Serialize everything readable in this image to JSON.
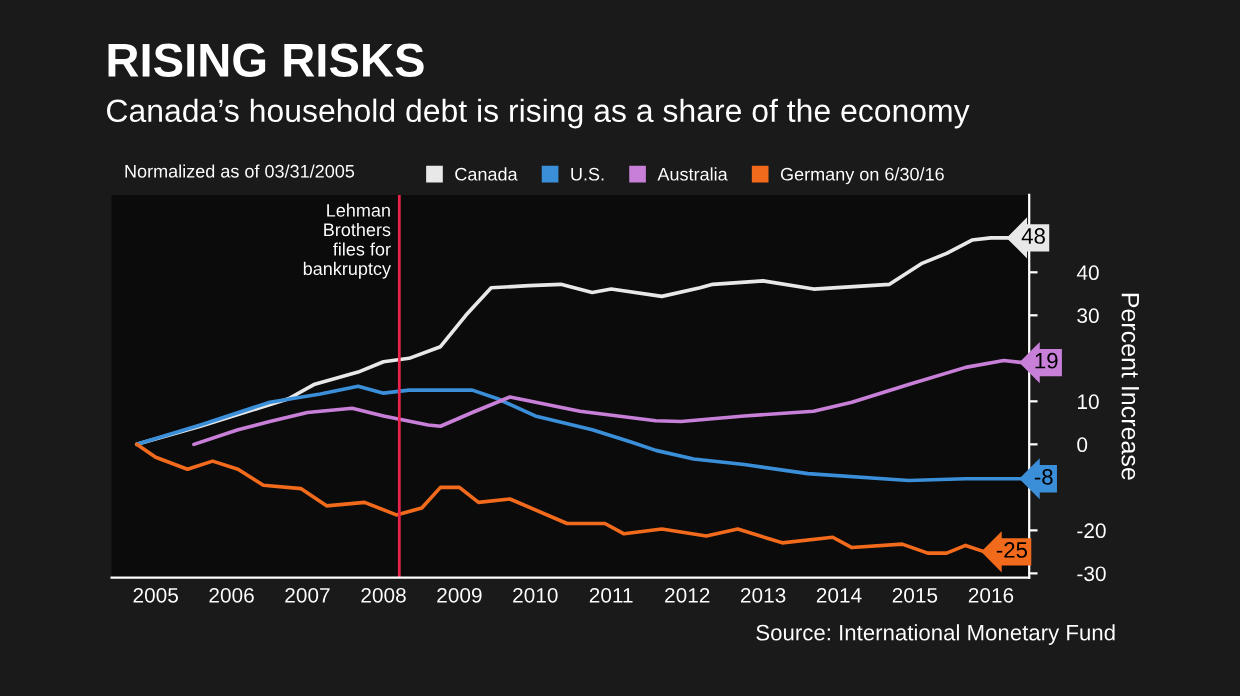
{
  "chart_data": {
    "type": "line",
    "title": "RISING RISKS",
    "subtitle": "Canada’s household debt is rising as a share of the economy",
    "ylabel": "Percent Increase",
    "annotations": [
      "Normalized as of 03/31/2005",
      "Source: International Monetary Fund"
    ],
    "legend": "top",
    "grid": false,
    "xlim": [
      "2004-12-01",
      "2017-01-01"
    ],
    "xticks": [
      {
        "value": "2005-07-01",
        "label": "2005"
      },
      {
        "value": "2006-07-01",
        "label": "2006"
      },
      {
        "value": "2007-07-01",
        "label": "2007"
      },
      {
        "value": "2008-07-01",
        "label": "2008"
      },
      {
        "value": "2009-07-01",
        "label": "2009"
      },
      {
        "value": "2010-07-01",
        "label": "2010"
      },
      {
        "value": "2011-07-01",
        "label": "2011"
      },
      {
        "value": "2012-07-01",
        "label": "2012"
      },
      {
        "value": "2013-07-01",
        "label": "2013"
      },
      {
        "value": "2014-07-01",
        "label": "2014"
      },
      {
        "value": "2015-07-01",
        "label": "2015"
      },
      {
        "value": "2016-07-01",
        "label": "2016"
      }
    ],
    "ylim": [
      -31,
      58
    ],
    "yticks": [
      -30,
      -20,
      0,
      10,
      30,
      40
    ],
    "ref_lines": [
      {
        "axis": "x",
        "value": "2008-09-15",
        "label": "Lehman\nBrothers\nfiles for\nbankruptcy",
        "color": "#e8234a"
      }
    ],
    "series": [
      {
        "name": "Canada",
        "color": "#e8e8e8",
        "x": [
          "2005-04",
          "2006-02",
          "2007-04",
          "2007-08",
          "2008-03",
          "2008-07",
          "2008-11",
          "2009-04",
          "2009-08",
          "2009-12",
          "2010-06",
          "2010-11",
          "2011-04",
          "2011-07",
          "2012-03",
          "2012-09",
          "2012-11",
          "2013-07",
          "2014-03",
          "2015-03",
          "2015-08",
          "2015-12",
          "2016-04",
          "2016-07",
          "2016-10"
        ],
        "values": [
          0,
          4.2,
          10.6,
          13.9,
          16.8,
          19.2,
          20,
          22.7,
          30,
          36.4,
          36.9,
          37.2,
          35.3,
          36.1,
          34.4,
          36.4,
          37.2,
          38,
          36.1,
          37.2,
          42,
          44.4,
          47.5,
          48,
          48
        ],
        "value_labels": [
          null,
          null,
          null,
          null,
          null,
          null,
          null,
          null,
          null,
          null,
          null,
          null,
          null,
          null,
          null,
          null,
          null,
          null,
          null,
          null,
          null,
          null,
          null,
          null,
          "48"
        ]
      },
      {
        "name": "U.S.",
        "color": "#3a8fd8",
        "x": [
          "2005-04",
          "2006-02",
          "2007-01",
          "2007-09",
          "2008-03",
          "2008-07",
          "2008-11",
          "2009-09",
          "2010-01",
          "2010-07",
          "2011-04",
          "2011-10",
          "2012-02",
          "2012-08",
          "2013-04",
          "2014-02",
          "2015-06",
          "2016-03",
          "2016-12"
        ],
        "values": [
          0,
          4.5,
          9.8,
          11.7,
          13.5,
          11.9,
          12.6,
          12.6,
          10.6,
          6.6,
          3.4,
          0.6,
          -1.4,
          -3.4,
          -4.7,
          -6.8,
          -8.4,
          -8,
          -8
        ],
        "value_labels": [
          null,
          null,
          null,
          null,
          null,
          null,
          null,
          null,
          null,
          null,
          null,
          null,
          null,
          null,
          null,
          null,
          null,
          null,
          "-8"
        ]
      },
      {
        "name": "Australia",
        "color": "#c77fd8",
        "x": [
          "2006-01",
          "2006-08",
          "2007-01",
          "2007-07",
          "2008-02",
          "2008-07",
          "2009-02",
          "2009-04",
          "2009-09",
          "2010-03",
          "2011-02",
          "2012-02",
          "2012-06",
          "2013-04",
          "2014-03",
          "2014-09",
          "2015-06",
          "2016-03",
          "2016-09",
          "2016-12"
        ],
        "values": [
          0,
          3.4,
          5.3,
          7.4,
          8.4,
          6.6,
          4.5,
          4.2,
          7.4,
          11,
          7.7,
          5.5,
          5.3,
          6.6,
          7.7,
          9.8,
          13.9,
          17.9,
          19.5,
          19
        ],
        "value_labels": [
          null,
          null,
          null,
          null,
          null,
          null,
          null,
          null,
          null,
          null,
          null,
          null,
          null,
          null,
          null,
          null,
          null,
          null,
          null,
          "19"
        ]
      },
      {
        "name": "Germany on 6/30/16",
        "color": "#f26a1b",
        "x": [
          "2005-04",
          "2005-07",
          "2005-12",
          "2006-04",
          "2006-08",
          "2006-12",
          "2007-06",
          "2007-10",
          "2008-04",
          "2008-09",
          "2009-01",
          "2009-04",
          "2009-07",
          "2009-10",
          "2010-03",
          "2010-12",
          "2011-06",
          "2011-09",
          "2012-03",
          "2012-10",
          "2013-03",
          "2013-10",
          "2014-06",
          "2014-09",
          "2015-05",
          "2015-09",
          "2015-12",
          "2016-03",
          "2016-06"
        ],
        "values": [
          0,
          -3,
          -5.8,
          -3.9,
          -5.8,
          -9.5,
          -10.3,
          -14.3,
          -13.5,
          -16.4,
          -14.8,
          -10,
          -10,
          -13.5,
          -12.7,
          -18.4,
          -18.4,
          -20.8,
          -19.7,
          -21.3,
          -19.7,
          -22.9,
          -21.6,
          -24,
          -23.2,
          -25.3,
          -25.3,
          -23.5,
          -25
        ],
        "value_labels": [
          null,
          null,
          null,
          null,
          null,
          null,
          null,
          null,
          null,
          null,
          null,
          null,
          null,
          null,
          null,
          null,
          null,
          null,
          null,
          null,
          null,
          null,
          null,
          null,
          null,
          null,
          null,
          null,
          "-25"
        ]
      }
    ]
  }
}
